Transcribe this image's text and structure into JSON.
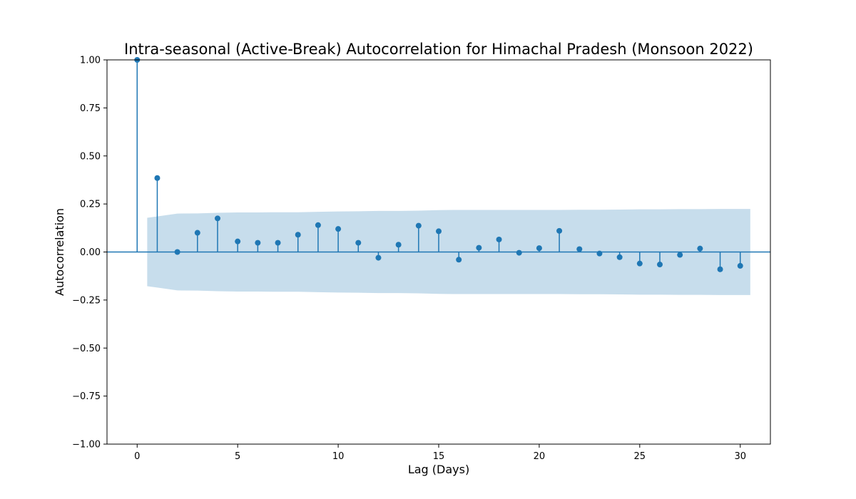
{
  "chart_data": {
    "type": "stem",
    "title": "Intra-seasonal (Active-Break) Autocorrelation for Himachal Pradesh (Monsoon 2022)",
    "xlabel": "Lag (Days)",
    "ylabel": "Autocorrelation",
    "xlim": [
      -1.5,
      31.5
    ],
    "ylim": [
      -1.0,
      1.0
    ],
    "xticks": [
      0,
      5,
      10,
      15,
      20,
      25,
      30
    ],
    "yticks": [
      -1.0,
      -0.75,
      -0.5,
      -0.25,
      0.0,
      0.25,
      0.5,
      0.75,
      1.0
    ],
    "ytick_labels": [
      "−1.00",
      "−0.75",
      "−0.50",
      "−0.25",
      "0.00",
      "0.25",
      "0.50",
      "0.75",
      "1.00"
    ],
    "grid": false,
    "lags": [
      0,
      1,
      2,
      3,
      4,
      5,
      6,
      7,
      8,
      9,
      10,
      11,
      12,
      13,
      14,
      15,
      16,
      17,
      18,
      19,
      20,
      21,
      22,
      23,
      24,
      25,
      26,
      27,
      28,
      29,
      30
    ],
    "values": [
      1.0,
      0.385,
      0.0,
      0.1,
      0.175,
      0.055,
      0.048,
      0.048,
      0.09,
      0.14,
      0.12,
      0.048,
      -0.03,
      0.038,
      0.137,
      0.108,
      -0.04,
      0.022,
      0.065,
      -0.004,
      0.02,
      0.11,
      0.015,
      -0.008,
      -0.027,
      -0.06,
      -0.065,
      -0.015,
      0.018,
      -0.09,
      -0.072
    ],
    "confidence_band": {
      "lags": [
        0.5,
        1,
        2,
        3,
        4,
        5,
        6,
        7,
        8,
        9,
        10,
        11,
        12,
        13,
        14,
        15,
        16,
        17,
        18,
        19,
        20,
        21,
        22,
        23,
        24,
        25,
        26,
        27,
        28,
        29,
        30,
        30.5
      ],
      "upper": [
        0.178,
        0.185,
        0.2,
        0.201,
        0.204,
        0.206,
        0.206,
        0.207,
        0.207,
        0.209,
        0.211,
        0.212,
        0.214,
        0.214,
        0.215,
        0.218,
        0.219,
        0.219,
        0.219,
        0.219,
        0.219,
        0.219,
        0.22,
        0.22,
        0.221,
        0.222,
        0.222,
        0.223,
        0.223,
        0.224,
        0.224,
        0.224
      ]
    },
    "colors": {
      "stem": "#1f77b4",
      "band": "#1f77b4",
      "baseline": "#1f77b4"
    }
  }
}
